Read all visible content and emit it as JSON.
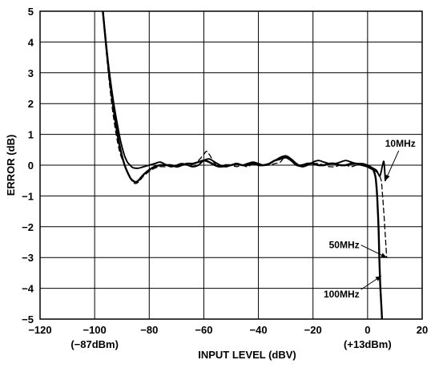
{
  "chart_data": {
    "type": "line",
    "title": "",
    "xlabel": "INPUT LEVEL (dBV)",
    "ylabel": "ERROR (dB)",
    "xlim": [
      -120,
      20
    ],
    "ylim": [
      -5,
      5
    ],
    "grid": true,
    "x_ticks": [
      -120,
      -100,
      -80,
      -60,
      -40,
      -20,
      0,
      20
    ],
    "x_tick_labels": [
      "−120",
      "−100",
      "−80",
      "−60",
      "−40",
      "−20",
      "0",
      "20"
    ],
    "y_ticks": [
      -5,
      -4,
      -3,
      -2,
      -1,
      0,
      1,
      2,
      3,
      4,
      5
    ],
    "y_tick_labels": [
      "−5",
      "−4",
      "−3",
      "−2",
      "−1",
      "0",
      "1",
      "2",
      "3",
      "4",
      "5"
    ],
    "x_sublabels": [
      {
        "x": -100,
        "text": "(−87dBm)"
      },
      {
        "x": 0,
        "text": "(+13dBm)"
      }
    ],
    "annotations": [
      {
        "text": "10MHz",
        "series": 0,
        "tip": [
          6.5,
          -0.5
        ],
        "label_pos": [
          12,
          0.6
        ]
      },
      {
        "text": "50MHz",
        "series": 1,
        "tip": [
          7.0,
          -3.0
        ],
        "label_pos": [
          -3,
          -2.7
        ]
      },
      {
        "text": "100MHz",
        "series": 2,
        "tip": [
          5.0,
          -3.6
        ],
        "label_pos": [
          -3,
          -4.3
        ]
      }
    ],
    "series": [
      {
        "style": "solid",
        "width": 1.9,
        "x": [
          -97,
          -95,
          -93,
          -91,
          -90,
          -89,
          -88,
          -87,
          -86,
          -84,
          -82,
          -80,
          -78,
          -76,
          -74,
          -72,
          -70,
          -68,
          -66,
          -64,
          -62,
          -60,
          -58,
          -56,
          -54,
          -52,
          -50,
          -48,
          -46,
          -44,
          -42,
          -40,
          -38,
          -36,
          -34,
          -32,
          -30,
          -28,
          -26,
          -24,
          -22,
          -20,
          -18,
          -16,
          -14,
          -12,
          -10,
          -8,
          -6,
          -4,
          -2,
          0,
          1,
          2,
          3,
          3.5,
          4,
          4.5,
          5,
          5.5,
          6,
          6.5
        ],
        "y": [
          5.0,
          3.3,
          2.0,
          1.0,
          0.6,
          0.3,
          0.1,
          0.0,
          -0.08,
          -0.1,
          -0.05,
          0.0,
          0.05,
          0.1,
          0.02,
          -0.05,
          0.0,
          0.05,
          0.0,
          -0.05,
          0.0,
          0.15,
          0.2,
          0.1,
          0.0,
          -0.05,
          0.0,
          0.05,
          0.0,
          0.05,
          0.1,
          0.05,
          0.0,
          0.05,
          0.15,
          0.25,
          0.3,
          0.2,
          0.05,
          -0.05,
          0.0,
          0.1,
          0.15,
          0.1,
          0.05,
          0.05,
          0.1,
          0.15,
          0.1,
          0.05,
          0.05,
          0.0,
          -0.05,
          -0.1,
          -0.15,
          -0.2,
          -0.3,
          -0.35,
          -0.2,
          0.0,
          0.1,
          -0.5
        ]
      },
      {
        "style": "dashed",
        "width": 1.3,
        "x": [
          -97,
          -95,
          -93,
          -91,
          -89,
          -87,
          -86,
          -85,
          -84,
          -83,
          -82,
          -80,
          -78,
          -76,
          -74,
          -72,
          -70,
          -68,
          -66,
          -64,
          -62,
          -60,
          -59,
          -58,
          -57,
          -56,
          -54,
          -52,
          -50,
          -48,
          -46,
          -44,
          -42,
          -40,
          -38,
          -36,
          -34,
          -32,
          -30,
          -28,
          -26,
          -24,
          -22,
          -20,
          -18,
          -16,
          -14,
          -12,
          -10,
          -8,
          -6,
          -4,
          -2,
          0,
          1,
          2,
          3,
          4,
          5,
          5.5,
          6,
          6.5,
          7
        ],
        "y": [
          5.0,
          3.0,
          1.5,
          0.5,
          0.0,
          -0.4,
          -0.55,
          -0.6,
          -0.55,
          -0.45,
          -0.35,
          -0.2,
          -0.1,
          -0.05,
          -0.05,
          0.0,
          0.0,
          0.05,
          0.0,
          0.05,
          0.15,
          0.35,
          0.45,
          0.35,
          0.2,
          0.05,
          -0.05,
          -0.05,
          0.0,
          -0.05,
          0.0,
          -0.05,
          0.05,
          0.05,
          0.0,
          0.0,
          0.05,
          0.1,
          0.3,
          0.2,
          0.0,
          -0.05,
          0.0,
          0.05,
          0.05,
          0.0,
          -0.05,
          -0.05,
          0.0,
          0.0,
          -0.05,
          0.0,
          0.0,
          -0.05,
          -0.1,
          -0.15,
          -0.2,
          -0.3,
          -0.5,
          -1.0,
          -1.6,
          -2.3,
          -3.0
        ]
      },
      {
        "style": "solid",
        "width": 2.4,
        "x": [
          -97,
          -95,
          -93,
          -91,
          -89,
          -87,
          -86,
          -85,
          -84,
          -83,
          -82,
          -80,
          -78,
          -76,
          -74,
          -72,
          -70,
          -68,
          -66,
          -64,
          -62,
          -60,
          -58,
          -56,
          -54,
          -52,
          -50,
          -48,
          -46,
          -44,
          -42,
          -40,
          -38,
          -36,
          -34,
          -32,
          -30,
          -28,
          -26,
          -24,
          -22,
          -20,
          -18,
          -16,
          -14,
          -12,
          -10,
          -8,
          -6,
          -4,
          -2,
          0,
          1,
          2,
          2.5,
          3,
          3.5,
          4,
          4.3,
          4.6,
          5.0,
          5.3
        ],
        "y": [
          5.0,
          3.2,
          1.8,
          0.7,
          0.0,
          -0.4,
          -0.5,
          -0.55,
          -0.5,
          -0.4,
          -0.3,
          -0.15,
          -0.05,
          0.0,
          0.0,
          0.0,
          -0.05,
          0.0,
          0.05,
          0.05,
          0.1,
          0.15,
          0.1,
          0.0,
          -0.05,
          0.0,
          0.0,
          0.05,
          0.0,
          0.0,
          0.05,
          0.0,
          0.0,
          0.05,
          0.15,
          0.2,
          0.25,
          0.15,
          0.0,
          0.0,
          0.05,
          0.05,
          0.0,
          0.0,
          0.05,
          0.05,
          0.0,
          0.0,
          0.05,
          0.05,
          0.0,
          -0.05,
          -0.1,
          -0.15,
          -0.25,
          -0.45,
          -1.0,
          -2.0,
          -3.0,
          -3.8,
          -4.5,
          -5.0
        ]
      }
    ]
  }
}
